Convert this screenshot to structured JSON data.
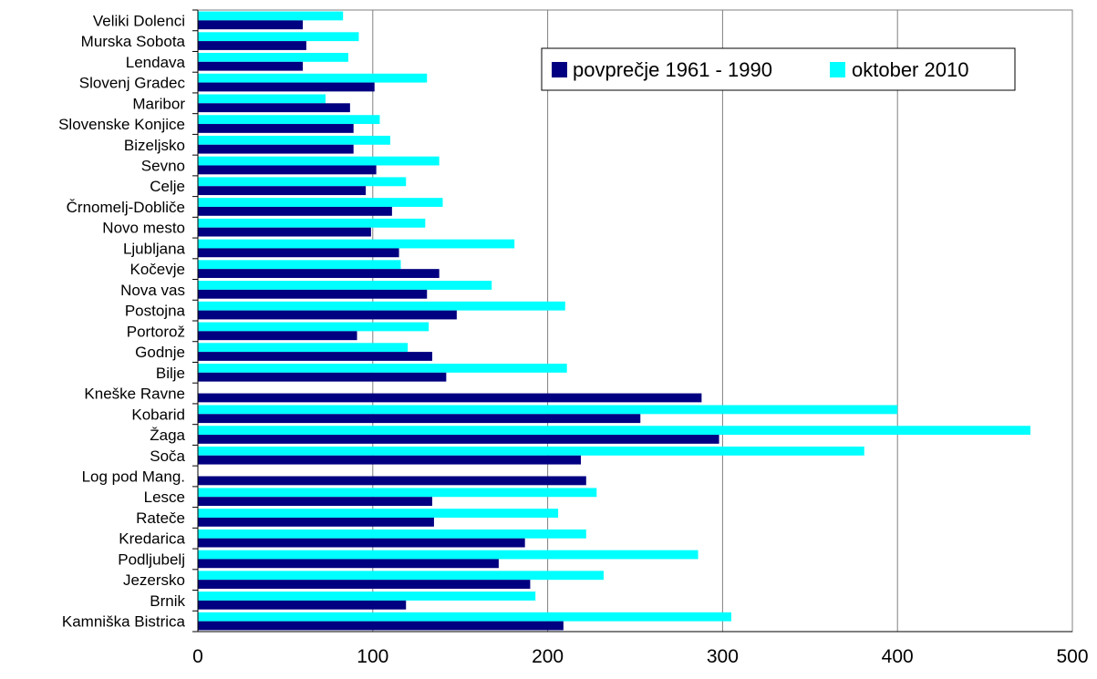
{
  "chart_data": {
    "type": "bar",
    "orientation": "horizontal",
    "categories": [
      "Veliki Dolenci",
      "Murska Sobota",
      "Lendava",
      "Slovenj Gradec",
      "Maribor",
      "Slovenske Konjice",
      "Bizeljsko",
      "Sevno",
      "Celje",
      "Črnomelj-Dobliče",
      "Novo mesto",
      "Ljubljana",
      "Kočevje",
      "Nova vas",
      "Postojna",
      "Portorož",
      "Godnje",
      "Bilje",
      "Kneške Ravne",
      "Kobarid",
      "Žaga",
      "Soča",
      "Log pod Mang.",
      "Lesce",
      "Rateče",
      "Kredarica",
      "Podljubelj",
      "Jezersko",
      "Brnik",
      "Kamniška Bistrica"
    ],
    "series": [
      {
        "name": "povprečje 1961 - 1990",
        "color": "#000080",
        "values": [
          60,
          62,
          60,
          101,
          87,
          89,
          89,
          102,
          96,
          111,
          99,
          115,
          138,
          131,
          148,
          91,
          134,
          142,
          288,
          253,
          298,
          219,
          222,
          134,
          135,
          187,
          172,
          190,
          119,
          209
        ]
      },
      {
        "name": "oktober 2010",
        "color": "#00FFFF",
        "values": [
          83,
          92,
          86,
          131,
          73,
          104,
          110,
          138,
          119,
          140,
          130,
          181,
          116,
          168,
          210,
          132,
          120,
          211,
          0,
          400,
          476,
          381,
          0,
          228,
          206,
          222,
          286,
          232,
          193,
          305
        ]
      }
    ],
    "xlim": [
      0,
      500
    ],
    "xticks": [
      "0",
      "100",
      "200",
      "300",
      "400",
      "500"
    ],
    "grid": true,
    "legend_position": "top-right",
    "title": "",
    "xlabel": "",
    "ylabel": ""
  }
}
